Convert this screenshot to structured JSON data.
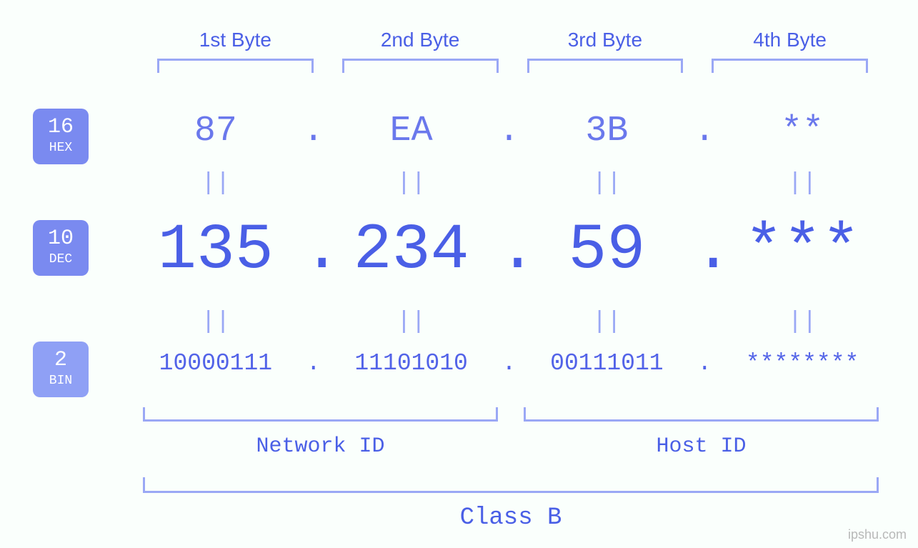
{
  "type": "infographic",
  "background_color": "#fafffc",
  "font_family_mono": "Courier New, monospace",
  "byte_headers": {
    "labels": [
      "1st Byte",
      "2nd Byte",
      "3rd Byte",
      "4th Byte"
    ],
    "color": "#4a5fe6",
    "fontsize": 28,
    "bracket_color": "#9aa8f5",
    "bracket_thickness": 3
  },
  "rows": {
    "hex": {
      "badge": {
        "base": "16",
        "name": "HEX",
        "bg": "#7a8af0",
        "fg": "#ffffff"
      },
      "values": [
        "87",
        "EA",
        "3B",
        "**"
      ],
      "separator": ".",
      "color": "#6a78ec",
      "fontsize": 50
    },
    "dec": {
      "badge": {
        "base": "10",
        "name": "DEC",
        "bg": "#7a8af0",
        "fg": "#ffffff"
      },
      "values": [
        "135",
        "234",
        "59",
        "***"
      ],
      "separator": ".",
      "color": "#4a5fe6",
      "fontsize": 90
    },
    "bin": {
      "badge": {
        "base": "2",
        "name": "BIN",
        "bg": "#8fa0f5",
        "fg": "#ffffff"
      },
      "values": [
        "10000111",
        "11101010",
        "00111011",
        "********"
      ],
      "separator": ".",
      "color": "#5263e8",
      "fontsize": 33
    },
    "equals": {
      "symbol": "=",
      "display": "||",
      "color": "#9aa8f5",
      "fontsize": 34
    }
  },
  "groupings": {
    "network_host": {
      "labels": [
        "Network ID",
        "Host ID"
      ],
      "color": "#4a5fe6",
      "bracket_color": "#9aa8f5",
      "fontsize": 30
    },
    "class": {
      "label": "Class B",
      "color": "#4a5fe6",
      "bracket_color": "#9aa8f5",
      "fontsize": 34
    }
  },
  "watermark": {
    "text": "ipshu.com",
    "color": "#b8b8b8",
    "fontsize": 18
  }
}
